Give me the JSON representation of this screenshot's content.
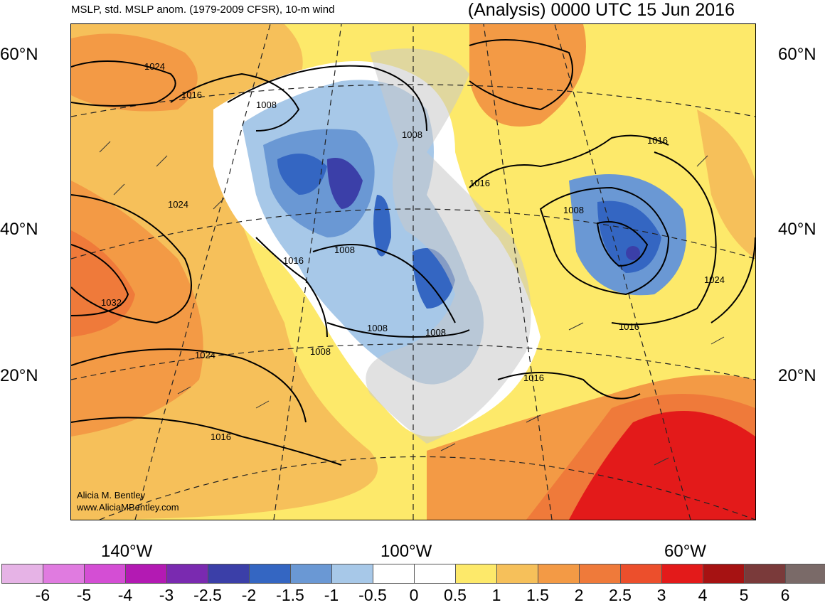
{
  "header": {
    "left_title": "MSLP, std. MSLP anom. (1979-2009 CFSR), 10-m wind",
    "right_title": "(Analysis) 0000 UTC 15 Jun 2016"
  },
  "latitude_labels": [
    "60°N",
    "40°N",
    "20°N"
  ],
  "longitude_labels": [
    "140°W",
    "100°W",
    "60°W"
  ],
  "credit": {
    "author": "Alicia M. Bentley",
    "website": "www.AliciaMBentley.com"
  },
  "isobar_labels": [
    "1024",
    "1016",
    "1008",
    "1008",
    "1016",
    "1016",
    "1024",
    "1008",
    "1016",
    "1008",
    "1032",
    "1024",
    "1008",
    "1008",
    "1008",
    "1016",
    "1024",
    "1016",
    "1016"
  ],
  "colorbar": {
    "labels": [
      "-6",
      "-5",
      "-4",
      "-3",
      "-2.5",
      "-2",
      "-1.5",
      "-1",
      "-0.5",
      "0",
      "0.5",
      "1",
      "1.5",
      "2",
      "2.5",
      "3",
      "4",
      "5",
      "6"
    ],
    "colors": [
      "#e6b3e6",
      "#e07be0",
      "#d44ed4",
      "#b31ab3",
      "#7a2ab0",
      "#3b3fa8",
      "#3466c2",
      "#6a98d4",
      "#a7c8e8",
      "#ffffff",
      "#ffffff",
      "#fde96a",
      "#f6c05a",
      "#f39a45",
      "#ef7a3a",
      "#ec4f2c",
      "#e31a1a",
      "#a61212",
      "#7a3a3a",
      "#7a6a68"
    ]
  },
  "colors": {
    "land_below_zero": "#c9c9c9",
    "contour": "#000000"
  }
}
